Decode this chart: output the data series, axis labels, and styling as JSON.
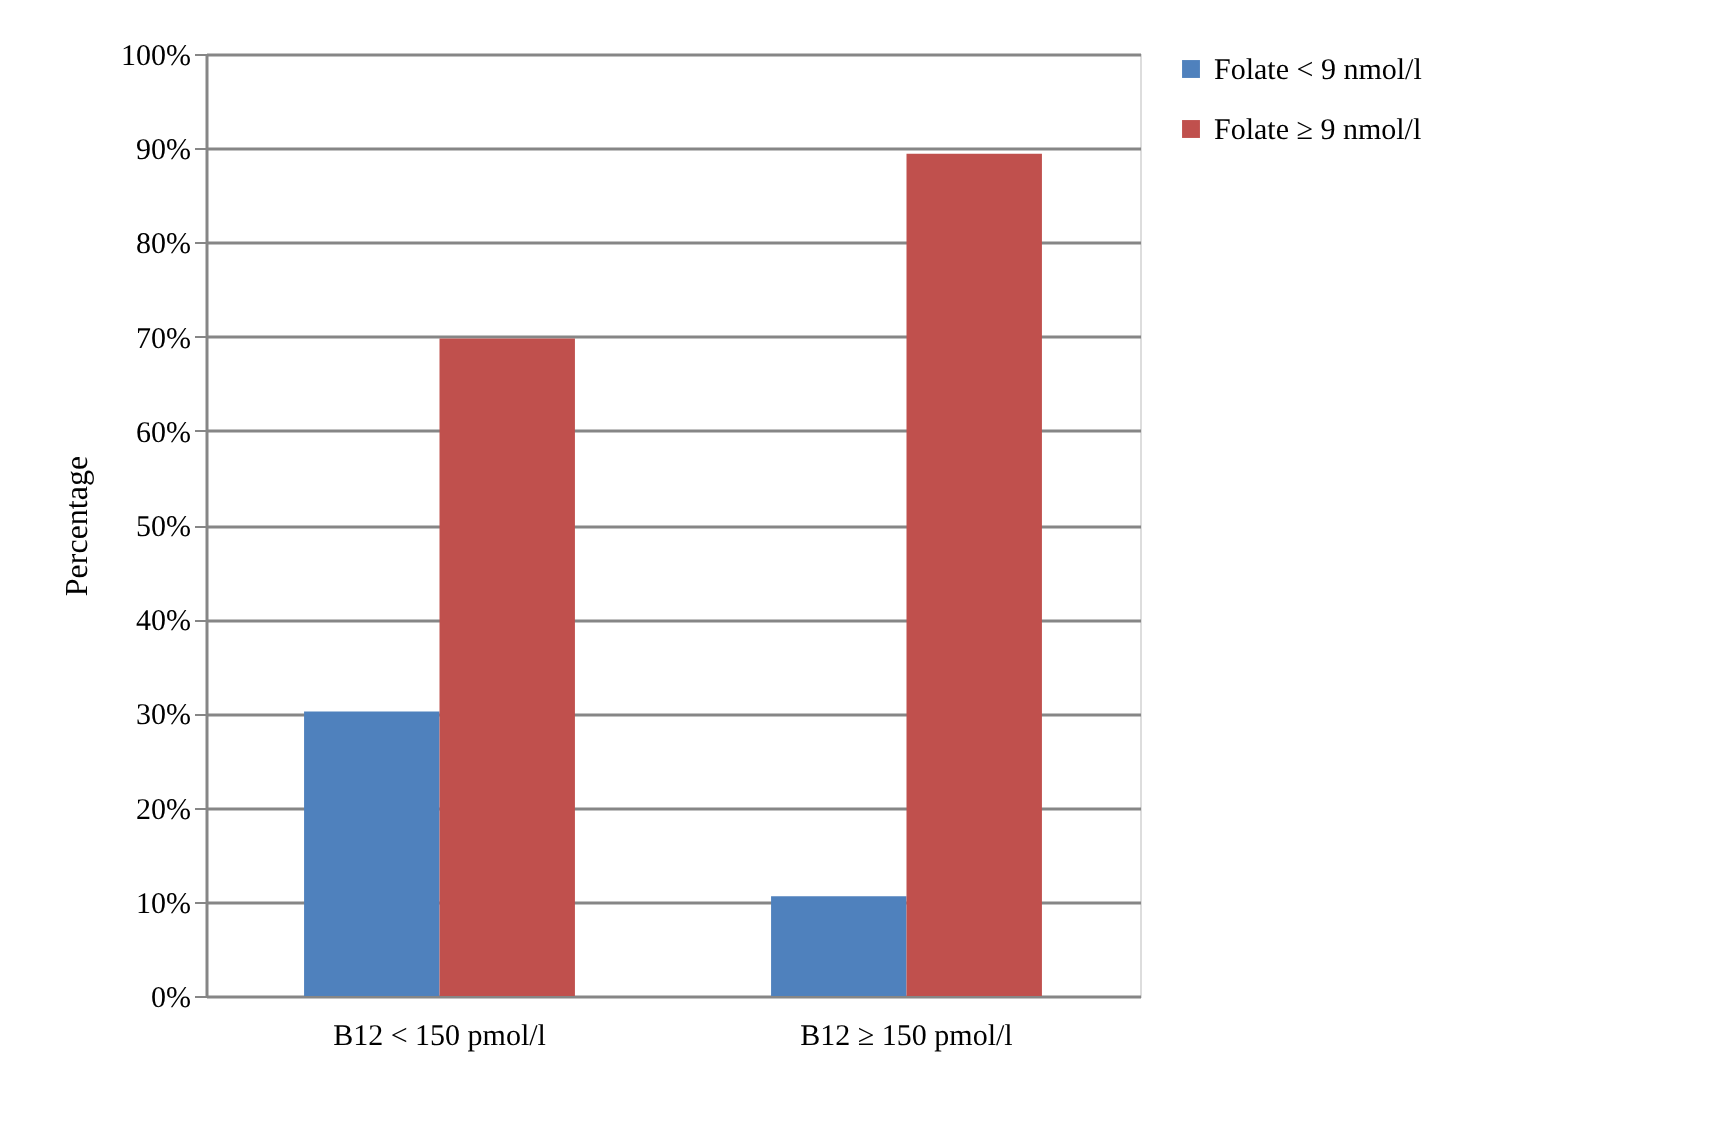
{
  "chart_data": {
    "type": "bar",
    "ylabel": "Percentage",
    "categories": [
      "B12 < 150 pmol/l",
      "B12 ≥ 150 pmol/l"
    ],
    "series": [
      {
        "name": "Folate < 9 nmol/l",
        "color": "#4f81bd",
        "values": [
          30.2,
          10.6
        ]
      },
      {
        "name": "Folate ≥ 9 nmol/l",
        "color": "#c0504d",
        "values": [
          69.8,
          89.4
        ]
      }
    ],
    "ylim": [
      0,
      100
    ],
    "yticks": [
      {
        "value": 0,
        "label": "0%"
      },
      {
        "value": 10,
        "label": "10%"
      },
      {
        "value": 20,
        "label": "20%"
      },
      {
        "value": 30,
        "label": "30%"
      },
      {
        "value": 40,
        "label": "40%"
      },
      {
        "value": 50,
        "label": "50%"
      },
      {
        "value": 60,
        "label": "60%"
      },
      {
        "value": 70,
        "label": "70%"
      },
      {
        "value": 80,
        "label": "80%"
      },
      {
        "value": 90,
        "label": "90%"
      },
      {
        "value": 100,
        "label": "100%"
      }
    ],
    "grid": "y",
    "legend": "right"
  }
}
